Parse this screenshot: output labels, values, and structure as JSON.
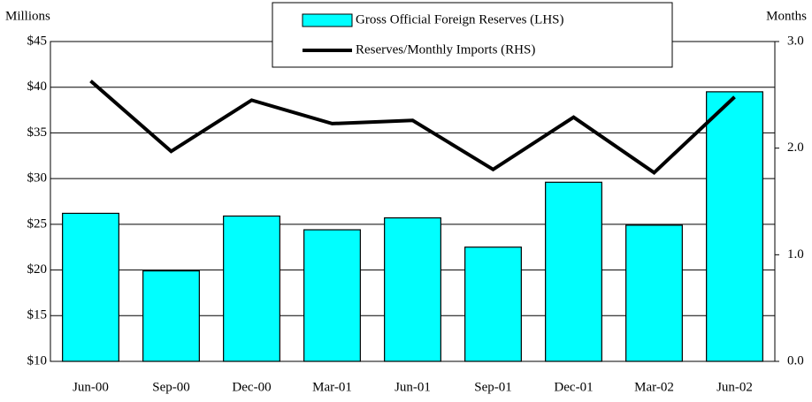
{
  "chart_data": {
    "type": "bar_line",
    "y_label": "Millions",
    "y2_label": "Months",
    "categories": [
      "Jun-00",
      "Sep-00",
      "Dec-00",
      "Mar-01",
      "Jun-01",
      "Sep-01",
      "Dec-01",
      "Mar-02",
      "Jun-02"
    ],
    "series": [
      {
        "name": "Gross Official Foreign Reserves (LHS)",
        "type": "bar",
        "color": "#00ffff",
        "axis": "y",
        "values": [
          26.2,
          19.9,
          25.9,
          24.4,
          25.7,
          22.5,
          29.6,
          24.9,
          39.5
        ]
      },
      {
        "name": "Reserves/Monthly Imports (RHS)",
        "type": "line",
        "color": "#000000",
        "axis": "y2",
        "values": [
          2.63,
          1.97,
          2.45,
          2.23,
          2.26,
          1.8,
          2.29,
          1.77,
          2.48
        ]
      }
    ],
    "ylim": [
      10,
      45
    ],
    "yticks": [
      {
        "value": 10,
        "label": "$10"
      },
      {
        "value": 15,
        "label": "$15"
      },
      {
        "value": 20,
        "label": "$20"
      },
      {
        "value": 25,
        "label": "$25"
      },
      {
        "value": 30,
        "label": "$30"
      },
      {
        "value": 35,
        "label": "$35"
      },
      {
        "value": 40,
        "label": "$40"
      },
      {
        "value": 45,
        "label": "$45"
      }
    ],
    "y2lim": [
      0,
      3
    ],
    "y2ticks": [
      {
        "value": 0,
        "label": "0.0"
      },
      {
        "value": 1,
        "label": "1.0"
      },
      {
        "value": 2,
        "label": "2.0"
      },
      {
        "value": 3,
        "label": "3.0"
      }
    ],
    "grid": true,
    "legend": "top"
  }
}
